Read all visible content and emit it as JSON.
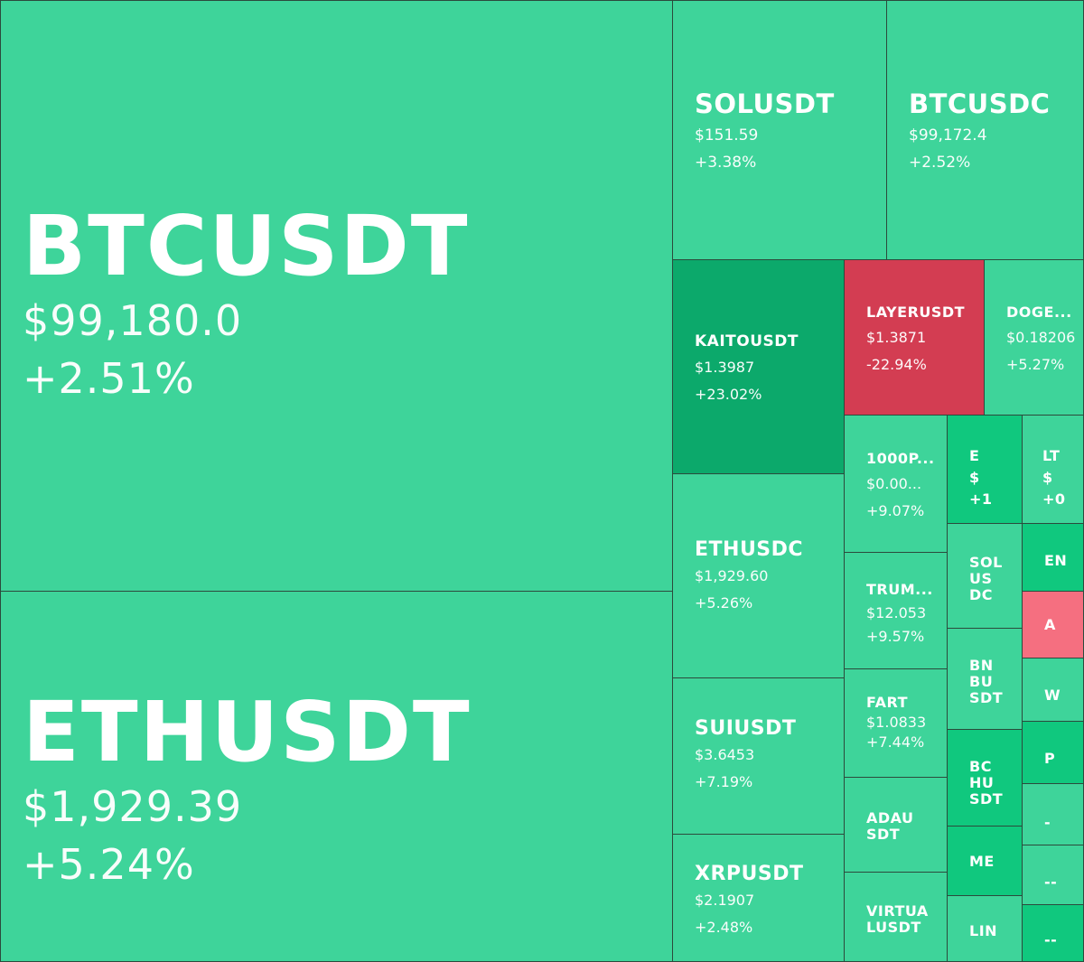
{
  "tiles": {
    "btcusdt": {
      "symbol": "BTCUSDT",
      "price": "$99,180.0",
      "change": "+2.51%"
    },
    "ethusdt": {
      "symbol": "ETHUSDT",
      "price": "$1,929.39",
      "change": "+5.24%"
    },
    "solusdt": {
      "symbol": "SOLUSDT",
      "price": "$151.59",
      "change": "+3.38%"
    },
    "btcusdc": {
      "symbol": "BTCUSDC",
      "price": "$99,172.4",
      "change": "+2.52%"
    },
    "kaitousdt": {
      "symbol": "KAITOUSDT",
      "price": "$1.3987",
      "change": "+23.02%"
    },
    "layerusdt": {
      "symbol": "LAYERUSDT",
      "price": "$1.3871",
      "change": "-22.94%"
    },
    "doge": {
      "symbol": "DOGE...",
      "price": "$0.18206",
      "change": "+5.27%"
    },
    "ethusdc": {
      "symbol": "ETHUSDC",
      "price": "$1,929.60",
      "change": "+5.26%"
    },
    "suiusdt": {
      "symbol": "SUIUSDT",
      "price": "$3.6453",
      "change": "+7.19%"
    },
    "xrpusdt": {
      "symbol": "XRPUSDT",
      "price": "$2.1907",
      "change": "+2.48%"
    },
    "p1000": {
      "symbol": "1000P...",
      "price": "$0.00...",
      "change": "+9.07%"
    },
    "trump": {
      "symbol": "TRUM...",
      "price": "$12.053",
      "change": "+9.57%"
    },
    "fart": {
      "symbol": "FART",
      "price": "$1.0833",
      "change": "+7.44%"
    },
    "adausdt": {
      "symbol": "ADAUSDT"
    },
    "virtualusdt": {
      "symbol": "VIRTUALUSDT"
    },
    "solusdc": {
      "symbol": "SOLUSDC"
    },
    "bnbusdt": {
      "symbol": "BNBUSDT"
    },
    "bchusdt": {
      "symbol": "BCHUSDT"
    },
    "me": {
      "symbol": "ME"
    },
    "lin": {
      "symbol": "LIN"
    },
    "e_tile": {
      "symbol": "E",
      "price": "$",
      "change": "+1"
    },
    "lt_tile": {
      "symbol": "LT",
      "price": "$",
      "change": "+0"
    },
    "en": {
      "symbol": "EN"
    },
    "a": {
      "symbol": "A"
    },
    "w": {
      "symbol": "W"
    },
    "p": {
      "symbol": "P"
    },
    "dot1": {
      "symbol": "-"
    },
    "dot2": {
      "symbol": "--"
    },
    "dot3": {
      "symbol": "--"
    }
  },
  "colors": {
    "up": "#3ed49a",
    "up_strong": "#10c87e",
    "up_stronger": "#0ca96b",
    "down_strong": "#d33d52",
    "down": "#f56f80"
  }
}
